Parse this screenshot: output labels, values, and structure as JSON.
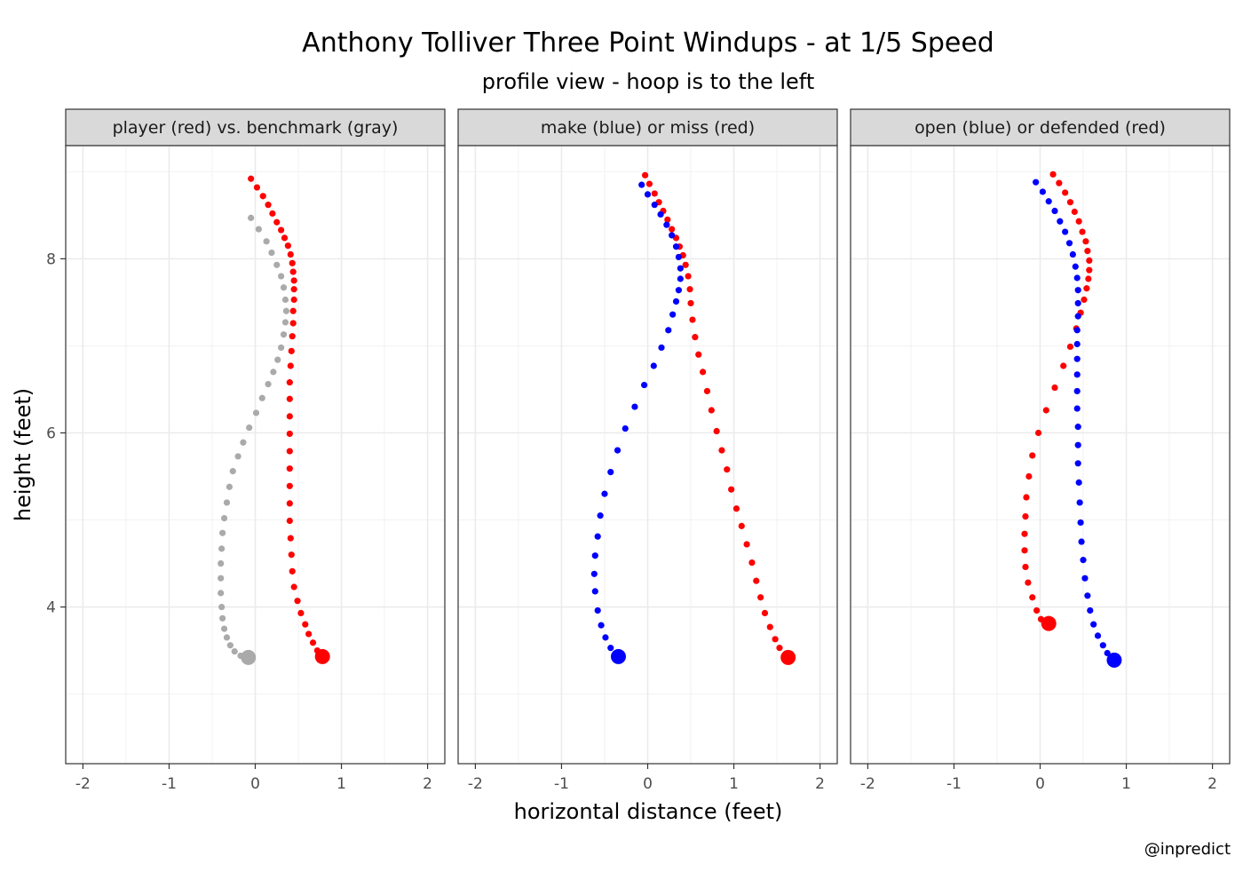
{
  "chart_data": {
    "type": "scatter",
    "title": "Anthony Tolliver Three Point Windups - at 1/5 Speed",
    "subtitle": "profile view - hoop is to the left",
    "xlabel": "horizontal distance (feet)",
    "ylabel": "height (feet)",
    "caption": "@inpredict",
    "xlim": [
      -2.2,
      2.2
    ],
    "ylim": [
      2.2,
      9.3
    ],
    "x_ticks": [
      -2,
      -1,
      0,
      1,
      2
    ],
    "x_tick_labels": [
      "-2",
      "-1",
      "0",
      "1",
      "2"
    ],
    "y_ticks": [
      4,
      6,
      8
    ],
    "y_tick_labels": [
      "4",
      "6",
      "8"
    ],
    "grid": true,
    "colors": {
      "red": "#ff0000",
      "blue": "#0000ff",
      "gray": "#aaaaaa",
      "strip_fill": "#d9d9d9",
      "grid": "#ebebeb"
    },
    "panels": [
      {
        "strip": "player (red) vs. benchmark (gray)",
        "series": [
          {
            "color": "gray",
            "points": [
              [
                -0.05,
                8.47
              ],
              [
                0.04,
                8.34
              ],
              [
                0.13,
                8.2
              ],
              [
                0.19,
                8.07
              ],
              [
                0.25,
                7.93
              ],
              [
                0.3,
                7.8
              ],
              [
                0.33,
                7.67
              ],
              [
                0.35,
                7.53
              ],
              [
                0.36,
                7.4
              ],
              [
                0.35,
                7.27
              ],
              [
                0.33,
                7.13
              ],
              [
                0.3,
                6.98
              ],
              [
                0.26,
                6.84
              ],
              [
                0.21,
                6.7
              ],
              [
                0.15,
                6.56
              ],
              [
                0.08,
                6.4
              ],
              [
                0.01,
                6.23
              ],
              [
                -0.07,
                6.06
              ],
              [
                -0.14,
                5.89
              ],
              [
                -0.2,
                5.73
              ],
              [
                -0.26,
                5.56
              ],
              [
                -0.3,
                5.38
              ],
              [
                -0.33,
                5.2
              ],
              [
                -0.36,
                5.02
              ],
              [
                -0.38,
                4.85
              ],
              [
                -0.39,
                4.67
              ],
              [
                -0.4,
                4.5
              ],
              [
                -0.4,
                4.33
              ],
              [
                -0.4,
                4.16
              ],
              [
                -0.39,
                4.0
              ],
              [
                -0.38,
                3.87
              ],
              [
                -0.36,
                3.75
              ],
              [
                -0.33,
                3.65
              ],
              [
                -0.29,
                3.56
              ],
              [
                -0.24,
                3.49
              ],
              [
                -0.17,
                3.44
              ]
            ],
            "end": [
              -0.08,
              3.42
            ]
          },
          {
            "color": "red",
            "points": [
              [
                -0.05,
                8.92
              ],
              [
                0.02,
                8.82
              ],
              [
                0.09,
                8.72
              ],
              [
                0.15,
                8.62
              ],
              [
                0.2,
                8.52
              ],
              [
                0.25,
                8.42
              ],
              [
                0.3,
                8.33
              ],
              [
                0.34,
                8.24
              ],
              [
                0.38,
                8.15
              ],
              [
                0.41,
                8.05
              ],
              [
                0.43,
                7.95
              ],
              [
                0.44,
                7.85
              ],
              [
                0.45,
                7.75
              ],
              [
                0.45,
                7.65
              ],
              [
                0.45,
                7.53
              ],
              [
                0.44,
                7.4
              ],
              [
                0.44,
                7.26
              ],
              [
                0.43,
                7.11
              ],
              [
                0.42,
                6.94
              ],
              [
                0.41,
                6.77
              ],
              [
                0.4,
                6.58
              ],
              [
                0.4,
                6.39
              ],
              [
                0.4,
                6.19
              ],
              [
                0.4,
                5.99
              ],
              [
                0.4,
                5.79
              ],
              [
                0.4,
                5.59
              ],
              [
                0.4,
                5.39
              ],
              [
                0.4,
                5.19
              ],
              [
                0.4,
                4.99
              ],
              [
                0.41,
                4.79
              ],
              [
                0.42,
                4.6
              ],
              [
                0.43,
                4.41
              ],
              [
                0.45,
                4.23
              ],
              [
                0.49,
                4.07
              ],
              [
                0.53,
                3.93
              ],
              [
                0.58,
                3.8
              ],
              [
                0.62,
                3.69
              ],
              [
                0.67,
                3.59
              ],
              [
                0.72,
                3.5
              ]
            ],
            "end": [
              0.78,
              3.43
            ]
          }
        ]
      },
      {
        "strip": "make (blue) or miss (red)",
        "series": [
          {
            "color": "red",
            "points": [
              [
                -0.03,
                8.96
              ],
              [
                0.02,
                8.86
              ],
              [
                0.08,
                8.75
              ],
              [
                0.13,
                8.65
              ],
              [
                0.18,
                8.55
              ],
              [
                0.23,
                8.45
              ],
              [
                0.28,
                8.34
              ],
              [
                0.33,
                8.24
              ],
              [
                0.37,
                8.14
              ],
              [
                0.41,
                8.04
              ],
              [
                0.44,
                7.93
              ],
              [
                0.47,
                7.8
              ],
              [
                0.49,
                7.65
              ],
              [
                0.5,
                7.49
              ],
              [
                0.52,
                7.3
              ],
              [
                0.55,
                7.1
              ],
              [
                0.59,
                6.9
              ],
              [
                0.64,
                6.7
              ],
              [
                0.69,
                6.48
              ],
              [
                0.74,
                6.26
              ],
              [
                0.8,
                6.02
              ],
              [
                0.86,
                5.8
              ],
              [
                0.92,
                5.58
              ],
              [
                0.97,
                5.35
              ],
              [
                1.03,
                5.13
              ],
              [
                1.09,
                4.93
              ],
              [
                1.15,
                4.72
              ],
              [
                1.21,
                4.51
              ],
              [
                1.26,
                4.3
              ],
              [
                1.31,
                4.11
              ],
              [
                1.36,
                3.93
              ],
              [
                1.42,
                3.77
              ],
              [
                1.48,
                3.63
              ],
              [
                1.53,
                3.53
              ]
            ],
            "end": [
              1.63,
              3.42
            ]
          },
          {
            "color": "blue",
            "points": [
              [
                -0.07,
                8.85
              ],
              [
                0.0,
                8.74
              ],
              [
                0.08,
                8.62
              ],
              [
                0.15,
                8.51
              ],
              [
                0.22,
                8.39
              ],
              [
                0.28,
                8.27
              ],
              [
                0.33,
                8.14
              ],
              [
                0.36,
                8.02
              ],
              [
                0.38,
                7.89
              ],
              [
                0.38,
                7.77
              ],
              [
                0.36,
                7.64
              ],
              [
                0.33,
                7.51
              ],
              [
                0.29,
                7.36
              ],
              [
                0.24,
                7.18
              ],
              [
                0.16,
                6.98
              ],
              [
                0.07,
                6.77
              ],
              [
                -0.04,
                6.55
              ],
              [
                -0.15,
                6.3
              ],
              [
                -0.26,
                6.05
              ],
              [
                -0.35,
                5.8
              ],
              [
                -0.43,
                5.55
              ],
              [
                -0.5,
                5.3
              ],
              [
                -0.55,
                5.05
              ],
              [
                -0.58,
                4.81
              ],
              [
                -0.61,
                4.59
              ],
              [
                -0.62,
                4.38
              ],
              [
                -0.61,
                4.18
              ],
              [
                -0.58,
                3.96
              ],
              [
                -0.54,
                3.79
              ],
              [
                -0.49,
                3.65
              ],
              [
                -0.43,
                3.53
              ]
            ],
            "end": [
              -0.34,
              3.43
            ]
          }
        ]
      },
      {
        "strip": "open (blue) or defended (red)",
        "series": [
          {
            "color": "red",
            "points": [
              [
                0.15,
                8.97
              ],
              [
                0.22,
                8.87
              ],
              [
                0.29,
                8.76
              ],
              [
                0.35,
                8.65
              ],
              [
                0.4,
                8.54
              ],
              [
                0.45,
                8.43
              ],
              [
                0.49,
                8.31
              ],
              [
                0.53,
                8.2
              ],
              [
                0.55,
                8.09
              ],
              [
                0.57,
                7.98
              ],
              [
                0.57,
                7.87
              ],
              [
                0.56,
                7.77
              ],
              [
                0.54,
                7.66
              ],
              [
                0.51,
                7.53
              ],
              [
                0.47,
                7.38
              ],
              [
                0.42,
                7.2
              ],
              [
                0.35,
                6.99
              ],
              [
                0.27,
                6.77
              ],
              [
                0.17,
                6.52
              ],
              [
                0.07,
                6.26
              ],
              [
                -0.02,
                6.0
              ],
              [
                -0.09,
                5.74
              ],
              [
                -0.13,
                5.5
              ],
              [
                -0.16,
                5.26
              ],
              [
                -0.17,
                5.04
              ],
              [
                -0.18,
                4.84
              ],
              [
                -0.18,
                4.65
              ],
              [
                -0.17,
                4.46
              ],
              [
                -0.14,
                4.28
              ],
              [
                -0.09,
                4.11
              ],
              [
                -0.04,
                3.96
              ],
              [
                0.01,
                3.86
              ]
            ],
            "end": [
              0.1,
              3.81
            ]
          },
          {
            "color": "blue",
            "points": [
              [
                -0.05,
                8.88
              ],
              [
                0.03,
                8.77
              ],
              [
                0.1,
                8.66
              ],
              [
                0.17,
                8.55
              ],
              [
                0.23,
                8.43
              ],
              [
                0.29,
                8.31
              ],
              [
                0.34,
                8.18
              ],
              [
                0.38,
                8.05
              ],
              [
                0.41,
                7.91
              ],
              [
                0.43,
                7.78
              ],
              [
                0.44,
                7.64
              ],
              [
                0.44,
                7.49
              ],
              [
                0.44,
                7.34
              ],
              [
                0.43,
                7.18
              ],
              [
                0.43,
                7.02
              ],
              [
                0.43,
                6.85
              ],
              [
                0.43,
                6.67
              ],
              [
                0.43,
                6.48
              ],
              [
                0.43,
                6.28
              ],
              [
                0.44,
                6.07
              ],
              [
                0.44,
                5.86
              ],
              [
                0.44,
                5.65
              ],
              [
                0.45,
                5.43
              ],
              [
                0.46,
                5.2
              ],
              [
                0.47,
                4.97
              ],
              [
                0.48,
                4.75
              ],
              [
                0.5,
                4.54
              ],
              [
                0.52,
                4.33
              ],
              [
                0.55,
                4.13
              ],
              [
                0.58,
                3.96
              ],
              [
                0.62,
                3.8
              ],
              [
                0.67,
                3.67
              ],
              [
                0.73,
                3.56
              ],
              [
                0.78,
                3.47
              ]
            ],
            "end": [
              0.86,
              3.39
            ]
          }
        ]
      }
    ]
  }
}
